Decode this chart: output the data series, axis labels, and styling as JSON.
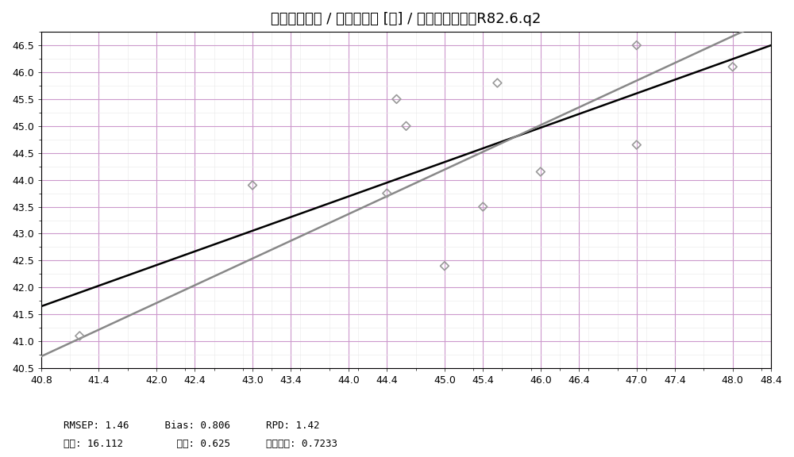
{
  "title": "预测值对真值 / 纤维素含量 [％] / 纤维素含量模型R82.6.q2",
  "xlim": [
    40.8,
    48.4
  ],
  "ylim": [
    40.5,
    46.75
  ],
  "xticks": [
    40.8,
    41.4,
    42.0,
    42.4,
    43.0,
    43.4,
    44.0,
    44.4,
    45.0,
    45.4,
    46.0,
    46.4,
    47.0,
    47.4,
    48.0,
    48.4
  ],
  "yticks": [
    40.5,
    41.0,
    41.5,
    42.0,
    42.5,
    43.0,
    43.5,
    44.0,
    44.5,
    45.0,
    45.5,
    46.0,
    46.5
  ],
  "black_line_x": [
    40.8,
    48.4
  ],
  "black_line_y": [
    41.65,
    46.5
  ],
  "gray_line_x": [
    40.8,
    48.4
  ],
  "gray_line_y": [
    40.72,
    47.0
  ],
  "scatter_x": [
    41.2,
    43.0,
    44.4,
    44.5,
    44.6,
    45.0,
    45.4,
    45.55,
    46.0,
    47.0,
    47.0,
    48.0
  ],
  "scatter_y": [
    41.1,
    43.9,
    43.75,
    45.5,
    45.0,
    42.4,
    43.5,
    45.8,
    44.15,
    44.65,
    46.5,
    46.1
  ],
  "stats_line1": "RMSEP: 1.46      Bias: 0.806      RPD: 1.42",
  "stats_line2": "截距: 16.112         斜率: 0.625      相关因子: 0.7233",
  "background_color": "#ffffff",
  "plot_bg_color": "#ffffff",
  "grid_color_major": "#cc99cc",
  "grid_color_minor": "#dddddd",
  "scatter_color": "#999999",
  "black_line_color": "#000000",
  "gray_line_color": "#888888",
  "title_fontsize": 13,
  "tick_fontsize": 9,
  "stats_fontsize": 9
}
